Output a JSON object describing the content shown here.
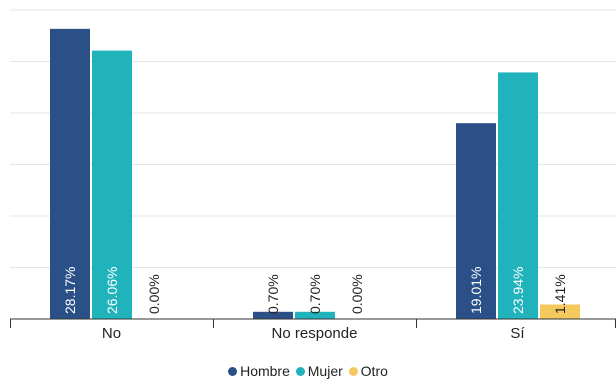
{
  "colors": {
    "Hombre": "#2b5088",
    "Mujer": "#20b3bb",
    "Otro": "#f4c95d",
    "grid": "#e6e6e6",
    "axis": "#333333"
  },
  "chart_data": {
    "type": "bar",
    "title": "",
    "xlabel": "",
    "ylabel": "",
    "ylim": [
      0,
      30
    ],
    "grid": true,
    "legend_position": "bottom",
    "categories": [
      "No",
      "No responde",
      "Sí"
    ],
    "series": [
      {
        "name": "Hombre",
        "values": [
          28.17,
          0.7,
          19.01
        ],
        "labels": [
          "28.17%",
          "0.70%",
          "19.01%"
        ]
      },
      {
        "name": "Mujer",
        "values": [
          26.06,
          0.7,
          23.94
        ],
        "labels": [
          "26.06%",
          "0.70%",
          "23.94%"
        ]
      },
      {
        "name": "Otro",
        "values": [
          0.0,
          0.0,
          1.41
        ],
        "labels": [
          "0.00%",
          "0.00%",
          "1.41%"
        ]
      }
    ]
  }
}
